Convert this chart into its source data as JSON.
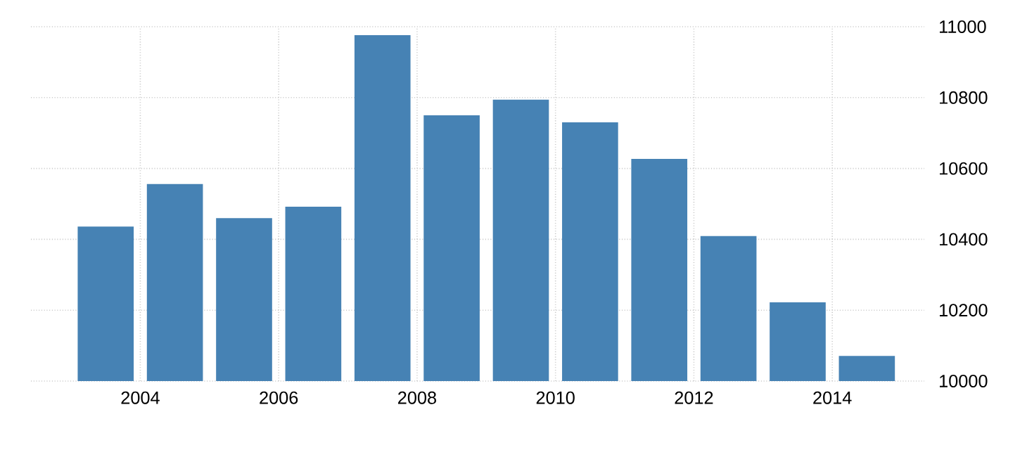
{
  "chart_data": {
    "type": "bar",
    "x": [
      "2003-07",
      "2004-07",
      "2005-07",
      "2006-07",
      "2007-07",
      "2008-07",
      "2009-07",
      "2010-07",
      "2011-07",
      "2012-07",
      "2013-07",
      "2014-07"
    ],
    "values": [
      10436,
      10556,
      10460,
      10492,
      10976,
      10750,
      10794,
      10730,
      10627,
      10409,
      10222,
      10071
    ],
    "color": "#4682b4",
    "xlim": [
      "2002-06",
      "2015-05"
    ],
    "xticks": [
      "2004",
      "2006",
      "2008",
      "2010",
      "2012",
      "2014"
    ],
    "ylim": [
      10000,
      11000
    ],
    "yticks": [
      10000,
      10200,
      10400,
      10600,
      10800,
      11000
    ],
    "grid": true
  }
}
